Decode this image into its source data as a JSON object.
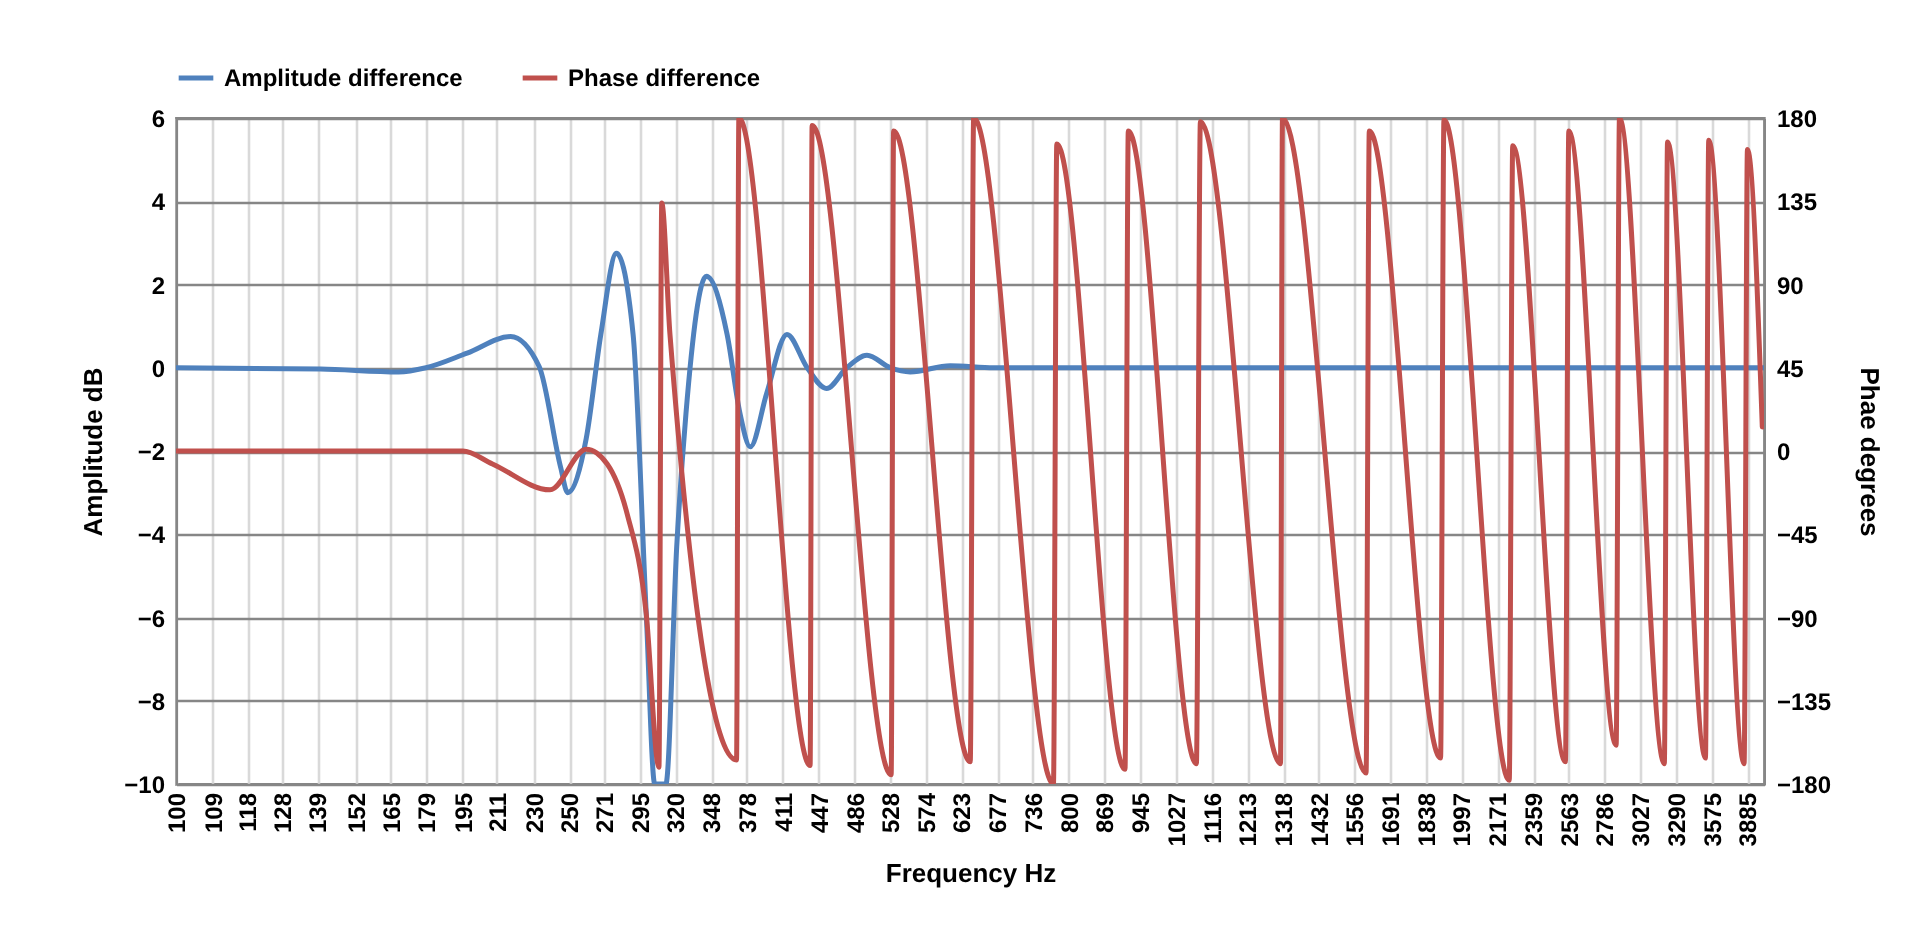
{
  "chart_data": {
    "type": "line",
    "xlabel": "Frequency Hz",
    "ylabel": "Amplitude dB",
    "y2label": "Phae degrees",
    "log": "x",
    "xlim": [
      100,
      4040
    ],
    "xticks": [
      100,
      109,
      118,
      128,
      139,
      152,
      165,
      179,
      195,
      211,
      230,
      250,
      271,
      295,
      320,
      348,
      378,
      411,
      447,
      486,
      528,
      574,
      623,
      677,
      736,
      800,
      869,
      945,
      1027,
      1116,
      1213,
      1318,
      1432,
      1556,
      1691,
      1838,
      1997,
      2171,
      2359,
      2563,
      2786,
      3027,
      3290,
      3575,
      3885
    ],
    "ylim": [
      -10,
      6
    ],
    "yticks": [
      -10,
      -8,
      -6,
      -4,
      -2,
      0,
      2,
      4,
      6
    ],
    "y2lim": [
      -180,
      180
    ],
    "y2ticks": [
      -180,
      -135,
      -90,
      -45,
      0,
      45,
      90,
      135,
      180
    ],
    "grid": true,
    "legend": "top",
    "series": [
      {
        "name": "Amplitude difference",
        "color": "#4f81bd",
        "x": [
          100,
          140,
          168,
          179,
          197,
          218,
          233,
          245,
          249,
          260,
          269,
          279,
          290,
          299,
          305,
          313,
          321,
          328,
          344,
          361,
          372,
          381,
          396,
          415,
          435,
          455,
          477,
          500,
          528,
          553,
          607,
          672,
          737,
          4040
        ],
        "values": [
          0,
          -0.03,
          -0.1,
          0,
          0.35,
          0.75,
          0.03,
          -2.4,
          -3,
          -1.7,
          0.8,
          2.75,
          0.8,
          -5.9,
          -10,
          -10,
          -4.3,
          -1.1,
          2.2,
          0.8,
          -1.1,
          -1.9,
          -0.6,
          0.8,
          0,
          -0.5,
          0,
          0.3,
          0,
          -0.1,
          0.05,
          0,
          0,
          0
        ]
      },
      {
        "name": "Phase difference",
        "color": "#c0504d",
        "axis": "y2",
        "x": [
          100,
          195,
          209,
          239,
          260,
          273,
          286,
          299,
          308,
          310,
          316,
          369,
          371,
          438,
          440,
          529,
          532,
          636,
          641,
          772,
          778,
          912,
          919,
          1077,
          1087,
          1310,
          1316,
          1599,
          1611,
          1902,
          1917,
          2232,
          2250,
          2544,
          2564,
          2863,
          2885,
          3203,
          3227,
          3525,
          3552,
          3857,
          3887,
          4024
        ],
        "values": [
          0,
          0,
          -7,
          -21,
          1,
          -7,
          -34,
          -88,
          -171,
          134,
          63,
          -167,
          180,
          -170,
          176,
          -175,
          173,
          -168,
          180,
          -180,
          166,
          -172,
          173,
          -169,
          178,
          -169,
          180,
          -174,
          173,
          -166,
          179,
          -178,
          165,
          -168,
          173,
          -159,
          180,
          -169,
          167,
          -166,
          168,
          -169,
          163,
          13
        ]
      }
    ]
  }
}
